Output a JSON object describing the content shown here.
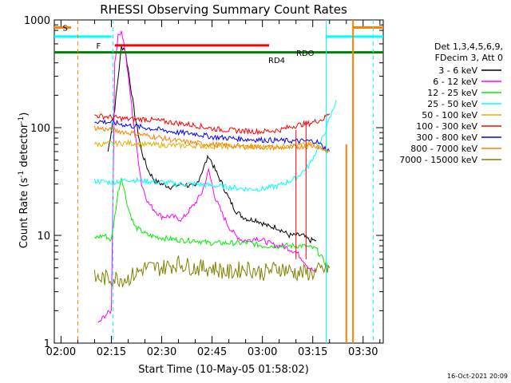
{
  "chart_data": {
    "type": "line",
    "title": "RHESSI Observing Summary Count Rates",
    "xlabel": "Start Time (10-May-05 01:58:02)",
    "ylabel_main": "Count Rate (s",
    "ylabel_sup1": "-1",
    "ylabel_mid": " detector",
    "ylabel_sup2": "-1",
    "ylabel_end": ")",
    "yscale": "log",
    "ylim": [
      1,
      1000
    ],
    "xlim_minutes": [
      -2,
      38
    ],
    "x_ticks": [
      {
        "m": 0,
        "label": "02:00"
      },
      {
        "m": 15,
        "label": "02:15"
      },
      {
        "m": 30,
        "label": "02:30"
      },
      {
        "m": 45,
        "label": "02:45"
      },
      {
        "m": 60,
        "label": "03:00"
      },
      {
        "m": 75,
        "label": "03:15"
      },
      {
        "m": 90,
        "label": "03:30"
      }
    ],
    "y_ticks": [
      {
        "v": 1,
        "label": "1"
      },
      {
        "v": 10,
        "label": "10"
      },
      {
        "v": 100,
        "label": "100"
      },
      {
        "v": 1000,
        "label": "1000"
      }
    ],
    "legend_header": [
      "Det 1,3,4,5,6,9,",
      "FDecim 3, Att 0"
    ],
    "legend_position": "right",
    "series": [
      {
        "name": "3 - 6 keV",
        "color": "#000000",
        "x": [
          14,
          16,
          18,
          19,
          20,
          22,
          24,
          26,
          28,
          30,
          33,
          36,
          40,
          44,
          46,
          48,
          50,
          52,
          54,
          56,
          58,
          60,
          62,
          64,
          66,
          68,
          70,
          72,
          74,
          76
        ],
        "y": [
          60,
          150,
          560,
          540,
          350,
          130,
          60,
          40,
          32,
          30,
          28,
          30,
          28,
          55,
          40,
          30,
          22,
          17,
          15,
          14,
          14,
          13,
          12,
          12,
          11,
          10,
          10,
          10,
          9,
          9
        ]
      },
      {
        "name": "6 - 12 keV",
        "color": "#ff00ff",
        "x": [
          11,
          13,
          15,
          16,
          17,
          18,
          19,
          20,
          22,
          24,
          26,
          28,
          30,
          33,
          36,
          40,
          42,
          44,
          46,
          48,
          50,
          52,
          54,
          56,
          58,
          60,
          62,
          64,
          66,
          68,
          70,
          72,
          74,
          76
        ],
        "y": [
          1.5,
          1.8,
          2,
          400,
          700,
          800,
          550,
          300,
          90,
          30,
          20,
          17,
          15,
          15,
          14,
          20,
          25,
          40,
          22,
          16,
          12,
          10,
          9,
          9,
          9.5,
          9,
          8.5,
          8,
          8,
          7.5,
          7,
          6,
          5,
          4.5
        ]
      },
      {
        "name": "12 - 25 keV",
        "color": "#00ee00",
        "x": [
          10,
          13,
          15,
          17,
          18,
          20,
          22,
          26,
          30,
          36,
          40,
          44,
          48,
          52,
          56,
          60,
          64,
          68,
          72,
          76,
          78,
          80
        ],
        "y": [
          9.5,
          10,
          9,
          25,
          35,
          18,
          12,
          10,
          9.5,
          9,
          9,
          8.5,
          8.5,
          8.5,
          8.5,
          8,
          8,
          8,
          8,
          7.5,
          6,
          5
        ]
      },
      {
        "name": "25 - 50 keV",
        "color": "#00ffff",
        "x": [
          10,
          15,
          20,
          25,
          30,
          35,
          40,
          45,
          50,
          55,
          60,
          65,
          70,
          74,
          78,
          82
        ],
        "y": [
          32,
          31,
          33,
          32,
          31,
          30,
          30,
          29,
          28,
          27,
          27,
          29,
          34,
          45,
          80,
          180
        ]
      },
      {
        "name": "50 - 100 keV",
        "color": "#e0b000",
        "x": [
          10,
          15,
          20,
          25,
          30,
          35,
          40,
          45,
          50,
          55,
          60,
          65,
          70,
          74,
          76,
          80
        ],
        "y": [
          70,
          71,
          72,
          70,
          69,
          68,
          68,
          67,
          67,
          66,
          66,
          67,
          68,
          70,
          70,
          60
        ]
      },
      {
        "name": "100 - 300 keV",
        "color": "#ff0000",
        "x": [
          10,
          15,
          20,
          25,
          30,
          35,
          40,
          45,
          50,
          55,
          60,
          65,
          70,
          74,
          78,
          80
        ],
        "y": [
          130,
          125,
          120,
          120,
          115,
          110,
          105,
          98,
          95,
          93,
          92,
          95,
          105,
          110,
          120,
          135
        ]
      },
      {
        "name": "300 - 800 keV",
        "color": "#0000ff",
        "x": [
          10,
          15,
          20,
          25,
          30,
          35,
          40,
          45,
          50,
          55,
          60,
          65,
          70,
          74,
          76,
          80
        ],
        "y": [
          115,
          112,
          105,
          100,
          95,
          90,
          88,
          82,
          80,
          78,
          77,
          76,
          75,
          75,
          75,
          60
        ]
      },
      {
        "name": "800 - 7000 keV",
        "color": "#ff8000",
        "x": [
          10,
          15,
          20,
          25,
          30,
          35,
          40,
          45,
          50,
          55,
          60,
          65,
          70,
          74,
          76,
          80
        ],
        "y": [
          100,
          95,
          90,
          85,
          80,
          75,
          72,
          70,
          68,
          67,
          66,
          65,
          66,
          68,
          68,
          60
        ]
      },
      {
        "name": "7000 - 15000 keV",
        "color": "#808000",
        "x": [
          10,
          15,
          20,
          25,
          30,
          35,
          40,
          45,
          50,
          55,
          60,
          65,
          70,
          75,
          80
        ],
        "y": [
          4,
          4,
          4,
          5,
          5,
          5.5,
          5,
          5,
          4.5,
          5,
          4.5,
          5,
          4.5,
          4.5,
          5
        ]
      }
    ],
    "flags": [
      {
        "label": "S",
        "color": "#ff8000"
      },
      {
        "label": "F",
        "color": "#ff0000"
      },
      {
        "label": "RD4",
        "color": "#008000"
      },
      {
        "label": "RDO",
        "color": "#008000"
      }
    ],
    "timestamp": "16-Oct-2021 20:09"
  }
}
